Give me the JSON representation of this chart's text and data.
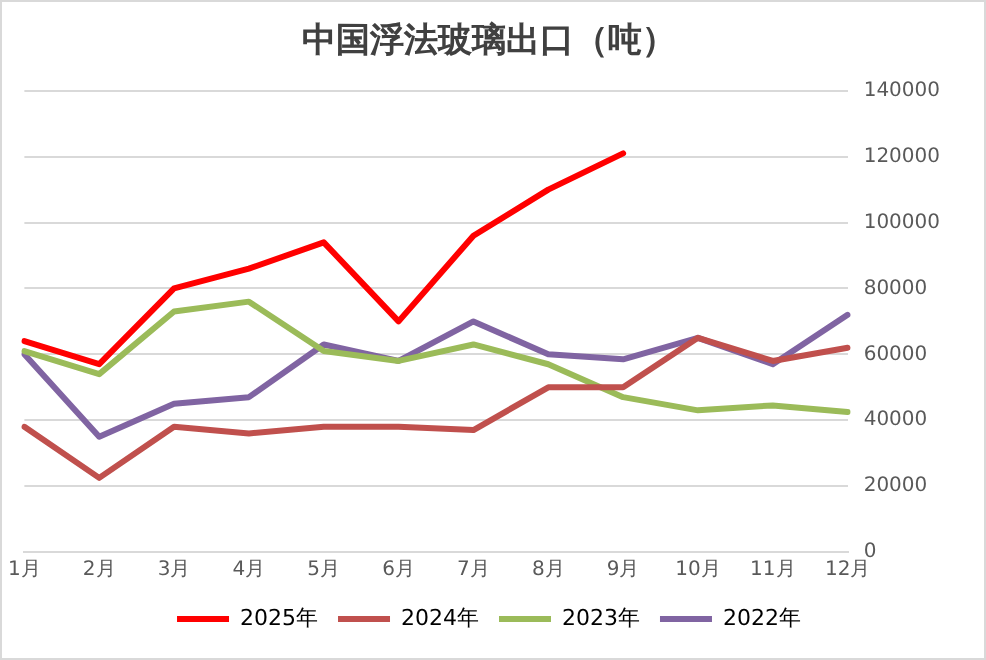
{
  "chart_data": {
    "type": "line",
    "title": "中国浮法玻璃出口（吨）",
    "categories": [
      "1月",
      "2月",
      "3月",
      "4月",
      "5月",
      "6月",
      "7月",
      "8月",
      "9月",
      "10月",
      "11月",
      "12月"
    ],
    "series": [
      {
        "name": "2025年",
        "color": "#ff0000",
        "values": [
          64000,
          57000,
          80000,
          86000,
          94000,
          70000,
          96000,
          110000,
          121000,
          null,
          null,
          null
        ]
      },
      {
        "name": "2024年",
        "color": "#c0504d",
        "values": [
          38000,
          22500,
          38000,
          36000,
          38000,
          38000,
          37000,
          50000,
          50000,
          65000,
          58000,
          62000
        ]
      },
      {
        "name": "2023年",
        "color": "#9bbb59",
        "values": [
          61000,
          54000,
          73000,
          76000,
          61000,
          58000,
          63000,
          57000,
          47000,
          43000,
          44500,
          42500
        ]
      },
      {
        "name": "2022年",
        "color": "#8064a2",
        "values": [
          60000,
          35000,
          45000,
          47000,
          63000,
          58000,
          70000,
          60000,
          58500,
          65000,
          57000,
          72000
        ]
      }
    ],
    "ylim": [
      0,
      140000
    ],
    "yticks": [
      0,
      20000,
      40000,
      60000,
      80000,
      100000,
      120000,
      140000
    ],
    "grid": "y",
    "legend": "bottom",
    "marker": "none",
    "line_style": "solid"
  }
}
